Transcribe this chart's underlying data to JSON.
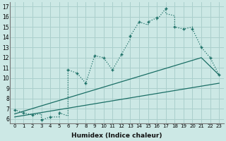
{
  "xlabel": "Humidex (Indice chaleur)",
  "bg_color": "#cce8e5",
  "grid_color": "#aacfcc",
  "line_color": "#1a6e65",
  "xlim": [
    -0.5,
    23.5
  ],
  "ylim": [
    5.6,
    17.4
  ],
  "xticks": [
    0,
    1,
    2,
    3,
    4,
    5,
    6,
    7,
    8,
    9,
    10,
    11,
    12,
    13,
    14,
    15,
    16,
    17,
    18,
    19,
    20,
    21,
    22,
    23
  ],
  "yticks": [
    6,
    7,
    8,
    9,
    10,
    11,
    12,
    13,
    14,
    15,
    16,
    17
  ],
  "main_x": [
    0,
    1,
    2,
    3,
    3,
    4,
    5,
    5,
    6,
    6,
    7,
    8,
    9,
    10,
    11,
    12,
    13,
    13,
    14,
    15,
    15,
    16,
    16,
    17,
    17,
    18,
    18,
    19,
    20,
    20,
    21,
    22,
    23
  ],
  "main_y": [
    6.9,
    6.6,
    6.4,
    6.5,
    5.9,
    6.2,
    6.2,
    6.6,
    6.3,
    10.8,
    10.5,
    9.5,
    12.2,
    12.0,
    10.8,
    12.3,
    13.8,
    14.1,
    15.5,
    15.2,
    15.5,
    15.9,
    15.7,
    16.8,
    16.3,
    16.1,
    15.0,
    14.8,
    15.0,
    14.8,
    13.0,
    12.0,
    10.3
  ],
  "line2_x": [
    0,
    21,
    23
  ],
  "line2_y": [
    6.5,
    12.0,
    10.3
  ],
  "line3_x": [
    0,
    23
  ],
  "line3_y": [
    6.2,
    9.5
  ],
  "marker_x": [
    0,
    1,
    2,
    3,
    4,
    5,
    6,
    7,
    8,
    9,
    10,
    11,
    12,
    13,
    14,
    15,
    16,
    17,
    18,
    19,
    20,
    21,
    22,
    23
  ],
  "marker_y": [
    6.9,
    6.6,
    6.4,
    5.9,
    6.2,
    6.6,
    10.8,
    10.5,
    9.5,
    12.2,
    12.0,
    10.8,
    12.3,
    14.1,
    15.5,
    15.5,
    15.9,
    16.8,
    15.0,
    14.8,
    14.8,
    13.0,
    12.0,
    10.3
  ]
}
